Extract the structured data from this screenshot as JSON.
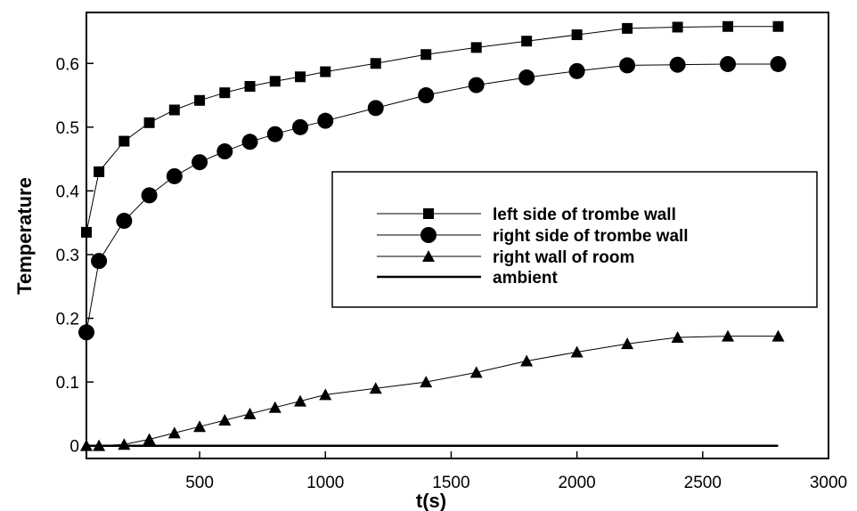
{
  "chart_data": {
    "type": "line",
    "title": "",
    "xlabel": "t(s)",
    "ylabel": "Temperature",
    "xlim": [
      50,
      3000
    ],
    "ylim": [
      -0.02,
      0.68
    ],
    "x_ticks": [
      500,
      1000,
      1500,
      2000,
      2500,
      3000
    ],
    "x_tick_labels": [
      "500",
      "1000",
      "1500",
      "2000",
      "2500",
      "3000"
    ],
    "y_ticks": [
      0,
      0.1,
      0.2,
      0.3,
      0.4,
      0.5,
      0.6
    ],
    "y_tick_labels": [
      "0",
      "0.1",
      "0.2",
      "0.3",
      "0.4",
      "0.5",
      "0.6"
    ],
    "grid": false,
    "legend_position": "center-right",
    "series": [
      {
        "name": "left side of trombe wall",
        "marker": "square",
        "x": [
          50,
          100,
          200,
          300,
          400,
          500,
          600,
          700,
          800,
          900,
          1000,
          1200,
          1400,
          1600,
          1800,
          2000,
          2200,
          2400,
          2600,
          2800
        ],
        "y": [
          0.335,
          0.43,
          0.478,
          0.507,
          0.527,
          0.542,
          0.554,
          0.564,
          0.572,
          0.579,
          0.587,
          0.6,
          0.614,
          0.625,
          0.635,
          0.645,
          0.655,
          0.657,
          0.658,
          0.658
        ]
      },
      {
        "name": "right side of trombe wall",
        "marker": "circle",
        "x": [
          50,
          100,
          200,
          300,
          400,
          500,
          600,
          700,
          800,
          900,
          1000,
          1200,
          1400,
          1600,
          1800,
          2000,
          2200,
          2400,
          2600,
          2800
        ],
        "y": [
          0.178,
          0.29,
          0.353,
          0.393,
          0.423,
          0.445,
          0.462,
          0.477,
          0.489,
          0.5,
          0.51,
          0.53,
          0.55,
          0.566,
          0.578,
          0.588,
          0.597,
          0.598,
          0.599,
          0.599
        ]
      },
      {
        "name": "right wall of room",
        "marker": "triangle",
        "x": [
          50,
          100,
          200,
          300,
          400,
          500,
          600,
          700,
          800,
          900,
          1000,
          1200,
          1400,
          1600,
          1800,
          2000,
          2200,
          2400,
          2600,
          2800
        ],
        "y": [
          0,
          0,
          0.002,
          0.01,
          0.02,
          0.03,
          0.04,
          0.05,
          0.06,
          0.07,
          0.08,
          0.09,
          0.1,
          0.115,
          0.133,
          0.147,
          0.16,
          0.17,
          0.172,
          0.172
        ]
      },
      {
        "name": "ambient",
        "marker": "none",
        "x": [
          50,
          2800
        ],
        "y": [
          0,
          0
        ]
      }
    ]
  }
}
